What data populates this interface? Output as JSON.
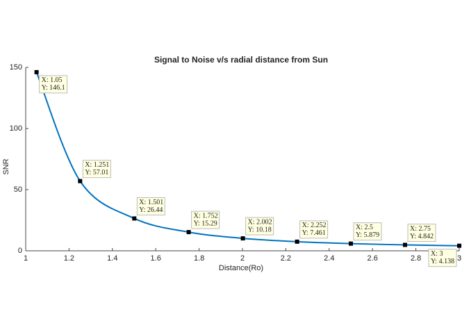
{
  "chart_data": {
    "type": "line",
    "title": "Signal to Noise v/s radial distance from Sun",
    "x_label": "Distance(Ro)",
    "y_label": "SNR",
    "x": [
      1.05,
      1.251,
      1.501,
      1.752,
      2.002,
      2.252,
      2.5,
      2.75,
      3
    ],
    "series": [
      {
        "color": "#0072bd",
        "values": [
          146.1,
          57.01,
          26.44,
          15.29,
          10.18,
          7.461,
          5.879,
          4.842,
          4.138
        ]
      }
    ],
    "datatips": [
      [
        "X: 1.05",
        "Y: 146.1"
      ],
      [
        "X: 1.251",
        "Y: 57.01"
      ],
      [
        "X: 1.501",
        "Y: 26.44"
      ],
      [
        "X: 1.752",
        "Y: 15.29"
      ],
      [
        "X: 2.002",
        "Y: 10.18"
      ],
      [
        "X: 2.252",
        "Y: 7.461"
      ],
      [
        "X: 2.5",
        "Y: 5.879"
      ],
      [
        "X: 2.75",
        "Y: 4.842"
      ],
      [
        "X: 3",
        "Y: 4.138"
      ]
    ],
    "xlim": [
      1,
      3
    ],
    "xticks": [
      1,
      1.2,
      1.4,
      1.6,
      1.8,
      2,
      2.2,
      2.4,
      2.6,
      2.8,
      3
    ],
    "ylim": [
      0,
      150
    ],
    "yticks": [
      0,
      50,
      100,
      150
    ],
    "grid": false
  }
}
